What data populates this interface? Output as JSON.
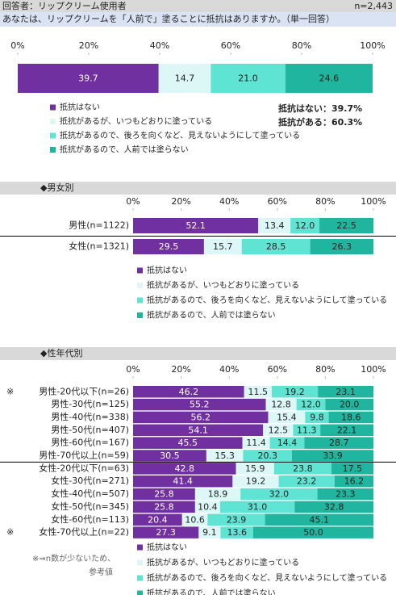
{
  "header": {
    "respondent": "回答者：リップクリーム使用者",
    "n": "n=2,443",
    "question": "あなたは、リップクリームを「人前で」塗ることに抵抗はありますか。（単一回答）"
  },
  "chart_data": [
    {
      "type": "stacked-bar",
      "xlim": [
        0,
        100
      ],
      "xticks": [
        {
          "value": 0,
          "label": "0%"
        },
        {
          "value": 20,
          "label": "20%"
        },
        {
          "value": 40,
          "label": "40%"
        },
        {
          "value": 60,
          "label": "60%"
        },
        {
          "value": 80,
          "label": "80%"
        },
        {
          "value": 100,
          "label": "100%"
        }
      ],
      "series": [
        {
          "name": "抵抗はない",
          "color": "#7030a0",
          "values": [
            39.7
          ],
          "value_labels": [
            "39.7"
          ]
        },
        {
          "name": "抵抗があるが、いつもどおりに塗っている",
          "color": "#dcf7f5",
          "values": [
            14.7
          ],
          "value_labels": [
            "14.7"
          ]
        },
        {
          "name": "抵抗があるので、後ろを向くなど、見えないようにして塗っている",
          "color": "#5fe3d2",
          "values": [
            21.0
          ],
          "value_labels": [
            "21.0"
          ]
        },
        {
          "name": "抵抗があるので、人前では塗らない",
          "color": "#20b59e",
          "values": [
            24.6
          ],
          "value_labels": [
            "24.6"
          ]
        }
      ],
      "annotations": [
        "抵抗はない：39.7%",
        "抵抗がある：60.3%"
      ]
    },
    {
      "type": "stacked-bar",
      "title": "◆男女別",
      "categories": [
        "男性(n=1122)",
        "女性(n=1321)"
      ],
      "xlim": [
        0,
        100
      ],
      "xticks": [
        {
          "value": 0,
          "label": "0%"
        },
        {
          "value": 20,
          "label": "20%"
        },
        {
          "value": 40,
          "label": "40%"
        },
        {
          "value": 60,
          "label": "60%"
        },
        {
          "value": 80,
          "label": "80%"
        },
        {
          "value": 100,
          "label": "100%"
        }
      ],
      "series": [
        {
          "name": "抵抗はない",
          "color": "#7030a0",
          "values": [
            52.1,
            29.5
          ],
          "value_labels": [
            "52.1",
            "29.5"
          ]
        },
        {
          "name": "抵抗があるが、いつもどおりに塗っている",
          "color": "#dcf7f5",
          "values": [
            13.4,
            15.7
          ],
          "value_labels": [
            "13.4",
            "15.7"
          ]
        },
        {
          "name": "抵抗があるので、後ろを向くなど、見えないようにして塗っている",
          "color": "#5fe3d2",
          "values": [
            12.0,
            28.5
          ],
          "value_labels": [
            "12.0",
            "28.5"
          ]
        },
        {
          "name": "抵抗があるので、人前では塗らない",
          "color": "#20b59e",
          "values": [
            22.5,
            26.3
          ],
          "value_labels": [
            "22.5",
            "26.3"
          ]
        }
      ]
    },
    {
      "type": "stacked-bar",
      "title": "◆性年代別",
      "categories": [
        "男性-20代以下(n=26)",
        "男性-30代(n=125)",
        "男性-40代(n=338)",
        "男性-50代(n=407)",
        "男性-60代(n=167)",
        "男性-70代以上(n=59)",
        "女性-20代以下(n=63)",
        "女性-30代(n=271)",
        "女性-40代(n=507)",
        "女性-50代(n=345)",
        "女性-60代(n=113)",
        "女性-70代以上(n=22)"
      ],
      "markers": [
        "※",
        null,
        null,
        null,
        null,
        null,
        null,
        null,
        null,
        null,
        null,
        "※"
      ],
      "xlim": [
        0,
        100
      ],
      "xticks": [
        {
          "value": 0,
          "label": "0%"
        },
        {
          "value": 20,
          "label": "20%"
        },
        {
          "value": 40,
          "label": "40%"
        },
        {
          "value": 60,
          "label": "60%"
        },
        {
          "value": 80,
          "label": "80%"
        },
        {
          "value": 100,
          "label": "100%"
        }
      ],
      "series": [
        {
          "name": "抵抗はない",
          "color": "#7030a0",
          "values": [
            46.2,
            55.2,
            56.2,
            54.1,
            45.5,
            30.5,
            42.8,
            41.4,
            25.8,
            25.8,
            20.4,
            27.3
          ],
          "value_labels": [
            "46.2",
            "55.2",
            "56.2",
            "54.1",
            "45.5",
            "30.5",
            "42.8",
            "41.4",
            "25.8",
            "25.8",
            "20.4",
            "27.3"
          ]
        },
        {
          "name": "抵抗があるが、いつもどおりに塗っている",
          "color": "#dcf7f5",
          "values": [
            11.5,
            12.8,
            15.4,
            12.5,
            11.4,
            15.3,
            15.9,
            19.2,
            18.9,
            10.4,
            10.6,
            9.1
          ],
          "value_labels": [
            "11.5",
            "12.8",
            "15.4",
            "12.5",
            "11.4",
            "15.3",
            "15.9",
            "19.2",
            "18.9",
            "10.4",
            "10.6",
            "9.1"
          ]
        },
        {
          "name": "抵抗があるので、後ろを向くなど、見えないようにして塗っている",
          "color": "#5fe3d2",
          "values": [
            19.2,
            12.0,
            9.8,
            11.3,
            14.4,
            20.3,
            23.8,
            23.2,
            32.0,
            31.0,
            23.9,
            13.6
          ],
          "value_labels": [
            "19.2",
            "12.0",
            "9.8",
            "11.3",
            "14.4",
            "20.3",
            "23.8",
            "23.2",
            "32.0",
            "31.0",
            "23.9",
            "13.6"
          ]
        },
        {
          "name": "抵抗があるので、人前では塗らない",
          "color": "#20b59e",
          "values": [
            23.1,
            20.0,
            18.6,
            22.1,
            28.7,
            33.9,
            17.5,
            16.2,
            23.3,
            32.8,
            45.1,
            50.0
          ],
          "value_labels": [
            "23.1",
            "20.0",
            "18.6",
            "22.1",
            "28.7",
            "33.9",
            "17.5",
            "16.2",
            "23.3",
            "32.8",
            "45.1",
            "50.0"
          ]
        }
      ],
      "note": [
        "※⇒n数が少ないため、",
        "参考値"
      ]
    }
  ]
}
